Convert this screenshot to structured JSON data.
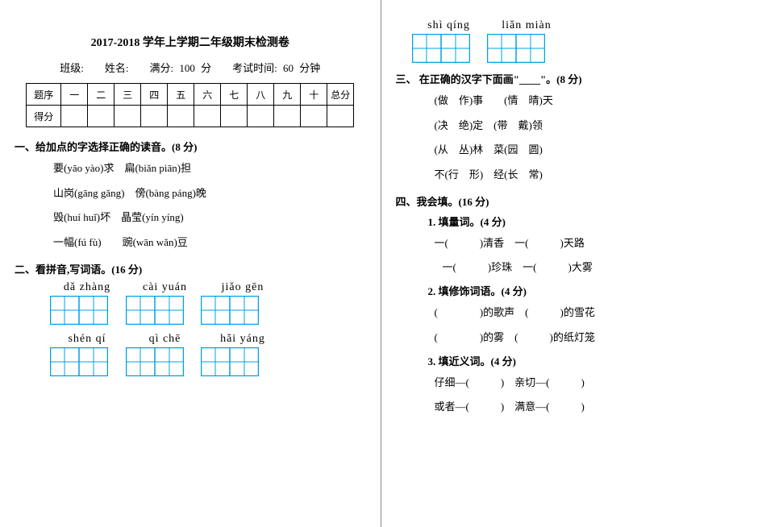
{
  "header": {
    "title": "2017-2018 学年上学期二年级期末检测卷",
    "meta": "班级:　　姓名:　　满分: 100 分　　考试时间: 60 分钟"
  },
  "score_table": {
    "row1_label": "题序",
    "cols": [
      "一",
      "二",
      "三",
      "四",
      "五",
      "六",
      "七",
      "八",
      "九",
      "十",
      "总分"
    ],
    "row2_label": "得分"
  },
  "q1": {
    "heading": "一、给加点的字选择正确的读音。(8 分)",
    "l1": "要(yāo yào)求　扁(biǎn piān)担",
    "l2": "山岗(gāng gǎng)　傍(bàng páng)晚",
    "l3": "毁(huí huǐ)坏　晶莹(yín yíng)",
    "l4": "一幅(fú fù)　　豌(wān wǎn)豆"
  },
  "q2": {
    "heading": "二、看拼音,写词语。(16 分)",
    "row1_pinyin": [
      "dǎ zhàng",
      "cài yuán",
      "jiǎo gēn"
    ],
    "row2_pinyin": [
      "shén  qí",
      "qì   chē",
      "hǎi yáng"
    ],
    "row3_pinyin": [
      "shì  qíng",
      "liǎn miàn"
    ]
  },
  "q3": {
    "heading": "三、 在正确的汉字下面画\"____\"。(8 分)",
    "l1": "(做　作)事　　(情　晴)天",
    "l2": "(决　绝)定　(带　戴)领",
    "l3": "(从　丛)林　菜(园　圆)",
    "l4": "不(行　形)　经(长　常)"
  },
  "q4": {
    "heading": "四、我会填。(16 分)",
    "s1": "1. 填量词。(4 分)",
    "s1l1": "一(　　　)清香　一(　　　)天路",
    "s1l2": "一(　　　)珍珠　一(　　　)大雾",
    "s2": "2. 填修饰词语。(4 分)",
    "s2l1": "(　　　　)的歌声　(　　　)的雪花",
    "s2l2": "(　　　　)的雾　(　　　)的纸灯笼",
    "s3": "3. 填近义词。(4 分)",
    "s3l1": "仔细—(　　　)　亲切—(　　　)",
    "s3l2": "或者—(　　　)　满意—(　　　)"
  },
  "style": {
    "box_stroke": "#00a0e9",
    "box_cell": 36,
    "box_rows": 1,
    "box_cols": 2,
    "grid_dash": "2,2"
  }
}
